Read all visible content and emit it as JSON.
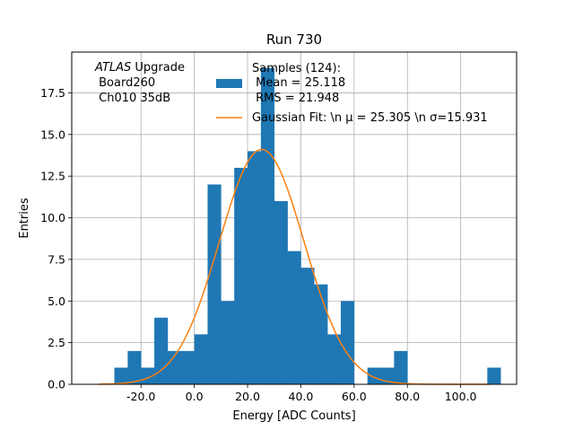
{
  "chart_data": {
    "type": "bar",
    "title": "Run 730",
    "xlabel": "Energy [ADC Counts]",
    "ylabel": "Entries",
    "xlim": [
      -46,
      121
    ],
    "ylim": [
      0,
      19.95
    ],
    "grid": true,
    "bin_width": 5,
    "x_ticks": [
      -20,
      0,
      20,
      40,
      60,
      80,
      100
    ],
    "x_tick_labels": [
      "-20.0",
      "0.0",
      "20.0",
      "40.0",
      "60.0",
      "80.0",
      "100.0"
    ],
    "y_ticks": [
      0,
      2.5,
      5,
      7.5,
      10,
      12.5,
      15,
      17.5
    ],
    "y_tick_labels": [
      "0.0",
      "2.5",
      "5.0",
      "7.5",
      "10.0",
      "12.5",
      "15.0",
      "17.5"
    ],
    "annotation": {
      "italic": "ATLAS",
      "rest": " Upgrade",
      "line2": " Board260",
      "line3": " Ch010 35dB"
    },
    "series": [
      {
        "name": "Samples (124):\n Mean = 25.118\n RMS = 21.948",
        "legend_lines": [
          "Samples (124):",
          " Mean = 25.118",
          " RMS = 21.948"
        ],
        "kind": "histogram",
        "color": "#1f77b4",
        "bin_starts": [
          -30,
          -25,
          -20,
          -15,
          -10,
          -5,
          0,
          5,
          10,
          15,
          20,
          25,
          30,
          35,
          40,
          45,
          50,
          55,
          60,
          65,
          70,
          75,
          80,
          85,
          90,
          95,
          100,
          105,
          110
        ],
        "values": [
          1,
          2,
          1,
          4,
          2,
          2,
          3,
          12,
          5,
          13,
          14,
          19,
          11,
          8,
          7,
          6,
          3,
          5,
          0,
          1,
          1,
          2,
          0,
          0,
          0,
          0,
          0,
          0,
          1
        ]
      },
      {
        "name": "Gaussian Fit: \\n μ = 25.305 \\n σ=15.931",
        "legend_text": "Gaussian Fit: \\n μ = 25.305 \\n σ=15.931",
        "kind": "line",
        "color": "#ff7f0e",
        "mu": 25.305,
        "sigma": 15.931,
        "amplitude": 14.1,
        "x_range": [
          -36,
          111
        ]
      }
    ],
    "legend_placement": "upper center"
  }
}
